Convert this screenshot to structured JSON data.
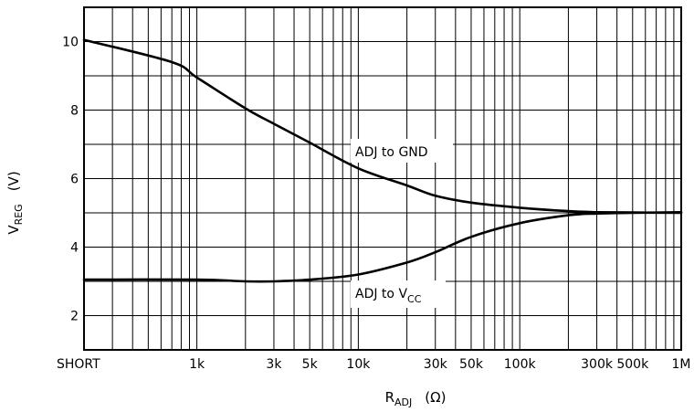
{
  "chart_data": {
    "type": "line",
    "xscale": "log",
    "xlim": [
      "SHORT",
      "1M"
    ],
    "ylim": [
      1,
      11
    ],
    "grid": true,
    "x_ticks": [
      "SHORT",
      "1k",
      "3k",
      "5k",
      "10k",
      "30k",
      "50k",
      "100k",
      "300k",
      "500k",
      "1M"
    ],
    "y_ticks": [
      "2",
      "4",
      "6",
      "8",
      "10"
    ],
    "ylabel": {
      "main": "V",
      "sub": "REG",
      "unit": "(V)"
    },
    "xlabel": {
      "main": "R",
      "sub": "ADJ",
      "unit": "(Ω)"
    },
    "series": [
      {
        "name": "ADJ to GND",
        "points": [
          [
            "SHORT",
            10.05
          ],
          [
            700,
            9.4
          ],
          [
            1000,
            8.95
          ],
          [
            2000,
            8.05
          ],
          [
            3000,
            7.6
          ],
          [
            5000,
            7.05
          ],
          [
            10000,
            6.3
          ],
          [
            20000,
            5.8
          ],
          [
            30000,
            5.5
          ],
          [
            50000,
            5.3
          ],
          [
            100000,
            5.15
          ],
          [
            200000,
            5.05
          ],
          [
            300000,
            5.02
          ],
          [
            500000,
            5.01
          ],
          [
            1000000,
            5.0
          ]
        ]
      },
      {
        "name": {
          "main": "ADJ to V",
          "sub": "CC"
        },
        "points": [
          [
            "SHORT",
            3.05
          ],
          [
            1000,
            3.05
          ],
          [
            2000,
            3.0
          ],
          [
            3000,
            3.0
          ],
          [
            5000,
            3.05
          ],
          [
            10000,
            3.2
          ],
          [
            20000,
            3.55
          ],
          [
            30000,
            3.85
          ],
          [
            50000,
            4.3
          ],
          [
            100000,
            4.7
          ],
          [
            200000,
            4.93
          ],
          [
            300000,
            4.98
          ],
          [
            500000,
            5.0
          ],
          [
            1000000,
            5.02
          ]
        ]
      }
    ]
  }
}
